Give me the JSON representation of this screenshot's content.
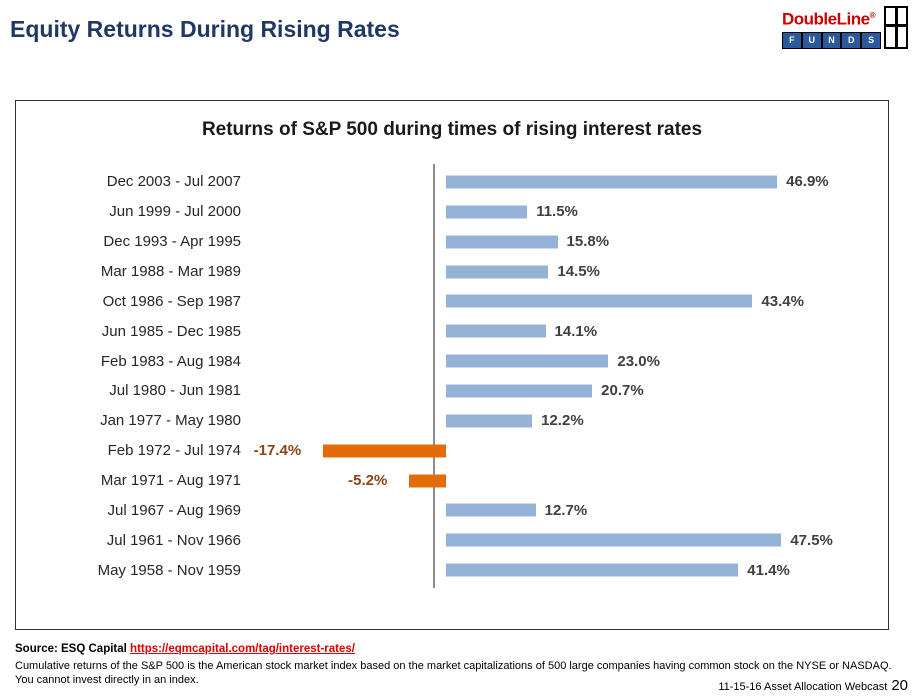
{
  "header": {
    "title": "Equity Returns During Rising Rates",
    "logo": {
      "brand": "DoubleLine",
      "registered": "®",
      "funds_letters": [
        "F",
        "U",
        "N",
        "D",
        "S"
      ],
      "brand_color": "#cc0000",
      "funds_bar_color": "#2b5a9b"
    }
  },
  "chart_data": {
    "type": "bar",
    "orientation": "horizontal",
    "title": "Returns of S&P 500 during times of rising interest rates",
    "categories": [
      "Dec 2003 - Jul 2007",
      "Jun 1999 - Jul 2000",
      "Dec 1993 - Apr 1995",
      "Mar 1988 - Mar 1989",
      "Oct 1986 - Sep 1987",
      "Jun 1985 - Dec 1985",
      "Feb 1983 - Aug 1984",
      "Jul 1980 - Jun 1981",
      "Jan 1977 - May 1980",
      "Feb 1972 - Jul 1974",
      "Mar 1971 - Aug 1971",
      "Jul 1967 - Aug 1969",
      "Jul 1961 - Nov 1966",
      "May 1958 - Nov 1959"
    ],
    "values": [
      46.9,
      11.5,
      15.8,
      14.5,
      43.4,
      14.1,
      23.0,
      20.7,
      12.2,
      -17.4,
      -5.2,
      12.7,
      47.5,
      41.4
    ],
    "value_labels": [
      "46.9%",
      "11.5%",
      "15.8%",
      "14.5%",
      "43.4%",
      "14.1%",
      "23.0%",
      "20.7%",
      "12.2%",
      "-17.4%",
      "-5.2%",
      "12.7%",
      "47.5%",
      "41.4%"
    ],
    "xlabel": "",
    "ylabel": "",
    "xlim": [
      -27.5,
      62
    ],
    "grid": false,
    "legend": false,
    "positive_color": "#95b3d7",
    "negative_color": "#e36c09",
    "positive_value_color": "#404040",
    "negative_value_color": "#8b4513",
    "axis_line_color": "#8c8c8c"
  },
  "footer": {
    "source_label": "Source: ESQ Capital",
    "source_link": "https://eqmcapital.com/tag/interest-rates/",
    "disclaimer": "Cumulative returns of the S&P 500 is the American stock market index based on the market capitalizations of 500 large companies having common stock on the NYSE or NASDAQ.  You cannot invest directly in an index.",
    "webcast_label": "11-15-16 Asset Allocation Webcast",
    "page_number": "20"
  }
}
